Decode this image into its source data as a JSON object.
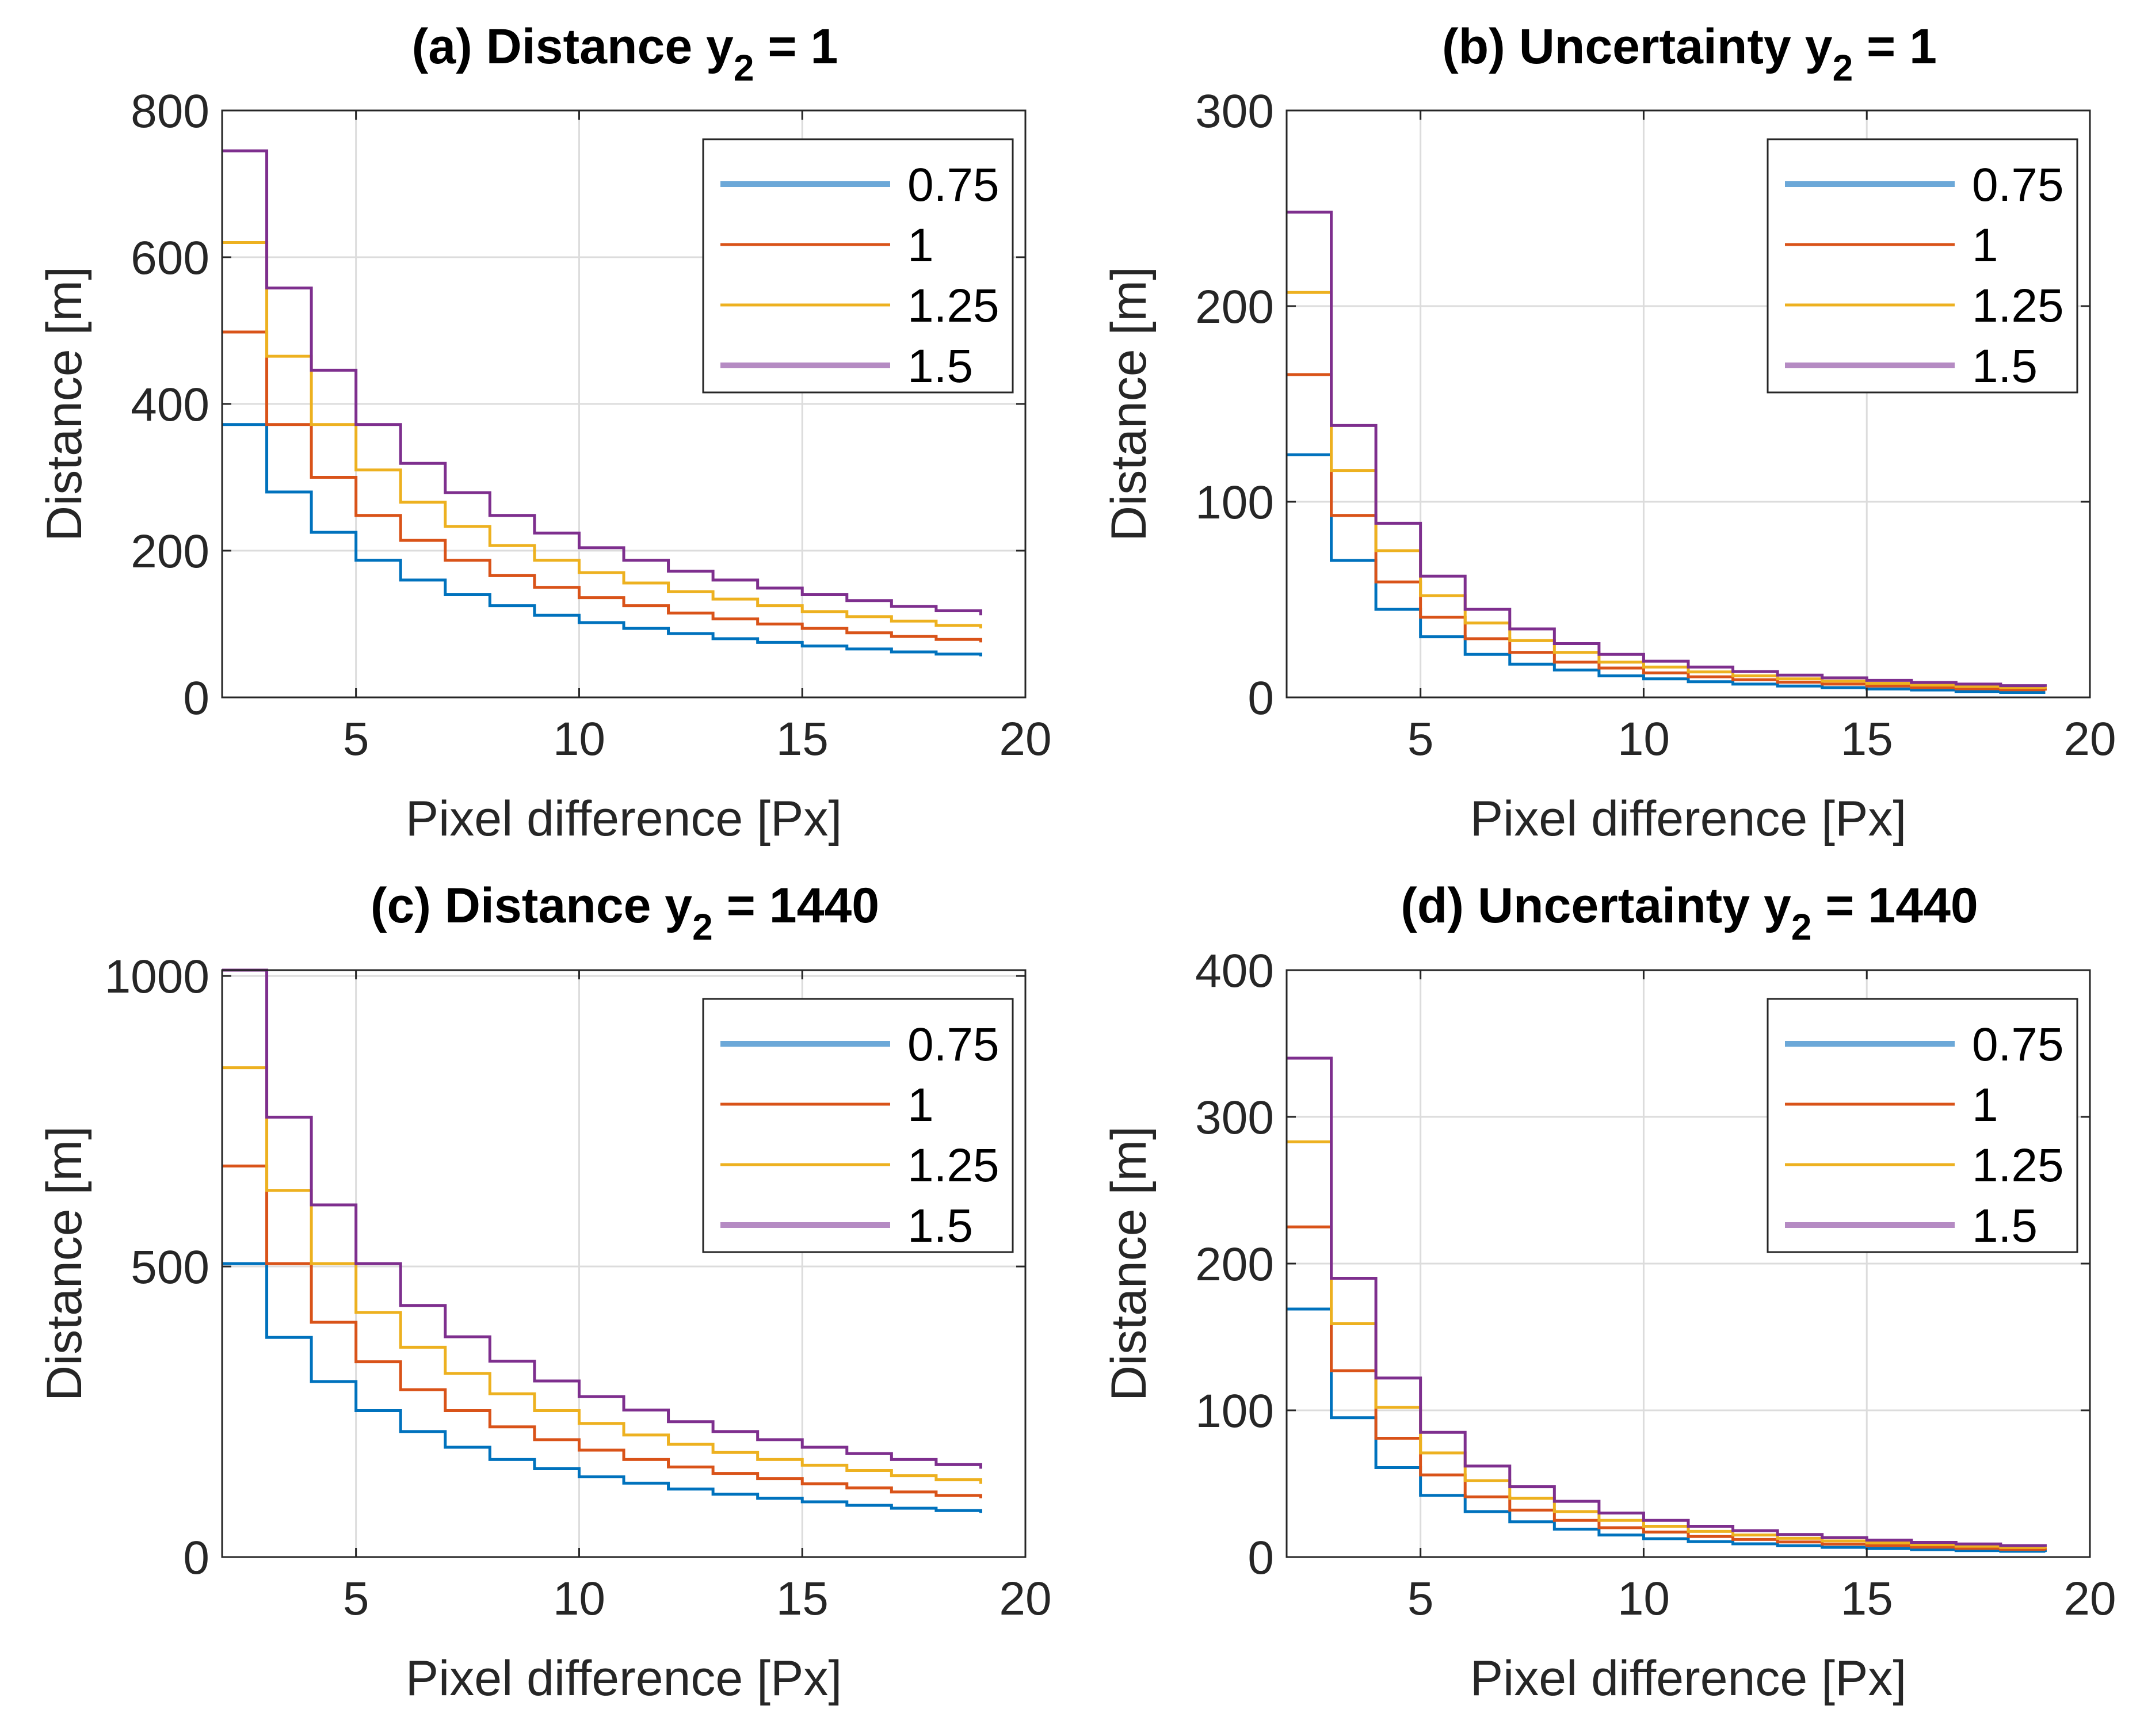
{
  "chart_data": [
    {
      "type": "line",
      "step": true,
      "title_main": "(a) Distance y",
      "title_sub": "2",
      "title_rest": " = 1",
      "xlabel": "Pixel difference [Px]",
      "ylabel": "Distance [m]",
      "xlim": [
        2,
        20
      ],
      "ylim": [
        0,
        800
      ],
      "xticks": [
        5,
        10,
        15,
        20
      ],
      "yticks": [
        0,
        200,
        400,
        600,
        800
      ],
      "grid": true,
      "legend": "top-right",
      "x": [
        2,
        3,
        4,
        5,
        6,
        7,
        8,
        9,
        10,
        11,
        12,
        13,
        14,
        15,
        16,
        17,
        18,
        19
      ],
      "series": [
        {
          "name": "0.75",
          "values": [
            372,
            280,
            225,
            187,
            160,
            140,
            125,
            112,
            102,
            94,
            87,
            80,
            75,
            70,
            66,
            62,
            59,
            56
          ]
        },
        {
          "name": "1",
          "values": [
            498,
            372,
            300,
            248,
            214,
            187,
            166,
            150,
            136,
            125,
            115,
            107,
            100,
            94,
            88,
            83,
            79,
            75
          ]
        },
        {
          "name": "1.25",
          "values": [
            620,
            465,
            372,
            310,
            266,
            233,
            207,
            187,
            170,
            156,
            144,
            134,
            125,
            117,
            110,
            104,
            98,
            94
          ]
        },
        {
          "name": "1.5",
          "values": [
            745,
            558,
            446,
            372,
            319,
            279,
            248,
            224,
            204,
            187,
            172,
            160,
            149,
            140,
            132,
            124,
            118,
            112
          ]
        }
      ]
    },
    {
      "type": "line",
      "step": true,
      "title_main": "(b) Uncertainty y",
      "title_sub": "2",
      "title_rest": " = 1",
      "xlabel": "Pixel difference [Px]",
      "ylabel": "Distance [m]",
      "xlim": [
        2,
        20
      ],
      "ylim": [
        0,
        300
      ],
      "xticks": [
        5,
        10,
        15,
        20
      ],
      "yticks": [
        0,
        100,
        200,
        300
      ],
      "grid": true,
      "legend": "top-right",
      "x": [
        2,
        3,
        4,
        5,
        6,
        7,
        8,
        9,
        10,
        11,
        12,
        13,
        14,
        15,
        16,
        17,
        18,
        19
      ],
      "series": [
        {
          "name": "0.75",
          "values": [
            124,
            70,
            45,
            31,
            22,
            17,
            14,
            11,
            9.5,
            8,
            6.8,
            5.8,
            5,
            4.3,
            3.8,
            3,
            2.5,
            2.5
          ]
        },
        {
          "name": "1",
          "values": [
            165,
            93,
            59,
            41,
            30,
            23,
            18,
            15,
            12.5,
            10.5,
            9,
            7.8,
            6.8,
            5.8,
            5,
            4.4,
            3.9,
            3.5
          ]
        },
        {
          "name": "1.25",
          "values": [
            207,
            116,
            75,
            52,
            38,
            29,
            23,
            18,
            15.5,
            13,
            11,
            9.5,
            8.3,
            7.2,
            6.3,
            5.6,
            5,
            4.5
          ]
        },
        {
          "name": "1.5",
          "values": [
            248,
            139,
            89,
            62,
            45,
            35,
            27.5,
            22,
            18.5,
            15.5,
            13.2,
            11.4,
            10,
            8.7,
            7.6,
            6.8,
            6,
            5.4
          ]
        }
      ]
    },
    {
      "type": "line",
      "step": true,
      "title_main": "(c) Distance y",
      "title_sub": "2",
      "title_rest": " = 1440",
      "xlabel": "Pixel difference [Px]",
      "ylabel": "Distance [m]",
      "xlim": [
        2,
        20
      ],
      "ylim": [
        0,
        1010
      ],
      "xticks": [
        5,
        10,
        15,
        20
      ],
      "yticks": [
        0,
        500,
        1000
      ],
      "grid": true,
      "legend": "top-right",
      "x": [
        2,
        3,
        4,
        5,
        6,
        7,
        8,
        9,
        10,
        11,
        12,
        13,
        14,
        15,
        16,
        17,
        18,
        19
      ],
      "series": [
        {
          "name": "0.75",
          "values": [
            505,
            378,
            302,
            252,
            216,
            189,
            168,
            152,
            138,
            127,
            117,
            108,
            101,
            95,
            89,
            84,
            80,
            76
          ]
        },
        {
          "name": "1",
          "values": [
            673,
            505,
            404,
            336,
            288,
            252,
            224,
            202,
            184,
            168,
            155,
            144,
            135,
            126,
            119,
            112,
            106,
            101
          ]
        },
        {
          "name": "1.25",
          "values": [
            842,
            631,
            505,
            421,
            361,
            316,
            281,
            252,
            230,
            210,
            194,
            180,
            168,
            158,
            149,
            140,
            133,
            126
          ]
        },
        {
          "name": "1.5",
          "values": [
            1010,
            757,
            606,
            505,
            433,
            379,
            337,
            303,
            276,
            253,
            233,
            216,
            202,
            189,
            178,
            168,
            159,
            152
          ]
        }
      ]
    },
    {
      "type": "line",
      "step": true,
      "title_main": "(d) Uncertainty y",
      "title_sub": "2",
      "title_rest": " = 1440",
      "xlabel": "Pixel difference [Px]",
      "ylabel": "Distance [m]",
      "xlim": [
        2,
        20
      ],
      "ylim": [
        0,
        400
      ],
      "xticks": [
        5,
        10,
        15,
        20
      ],
      "yticks": [
        0,
        100,
        200,
        300,
        400
      ],
      "grid": true,
      "legend": "top-right",
      "x": [
        2,
        3,
        4,
        5,
        6,
        7,
        8,
        9,
        10,
        11,
        12,
        13,
        14,
        15,
        16,
        17,
        18,
        19
      ],
      "series": [
        {
          "name": "0.75",
          "values": [
            169,
            95,
            61,
            42,
            31,
            24,
            19,
            15,
            12.5,
            10.5,
            9,
            7.7,
            6.6,
            5.8,
            5,
            4.4,
            3.9,
            3.5
          ]
        },
        {
          "name": "1",
          "values": [
            225,
            127,
            81,
            56,
            41,
            32,
            25,
            20,
            17,
            14,
            12,
            10.3,
            8.8,
            7.7,
            6.7,
            5.9,
            5.2,
            4.6
          ]
        },
        {
          "name": "1.25",
          "values": [
            283,
            159,
            102,
            71,
            52,
            40,
            31,
            25,
            21,
            17.5,
            15,
            12.8,
            11,
            9.6,
            8.4,
            7.4,
            6.5,
            5.8
          ]
        },
        {
          "name": "1.5",
          "values": [
            340,
            190,
            122,
            85,
            62,
            48,
            38,
            30,
            25,
            21,
            18,
            15.4,
            13.2,
            11.5,
            10,
            8.9,
            7.8,
            7
          ]
        }
      ]
    }
  ],
  "colors": {
    "series": [
      "#0072BD",
      "#D95319",
      "#EDB120",
      "#7E2F8E"
    ],
    "legend_series": [
      "#6CA8D8",
      "#D95319",
      "#EDB120",
      "#B58BC3"
    ],
    "grid": "#DCDCDC",
    "axis": "#262626"
  }
}
